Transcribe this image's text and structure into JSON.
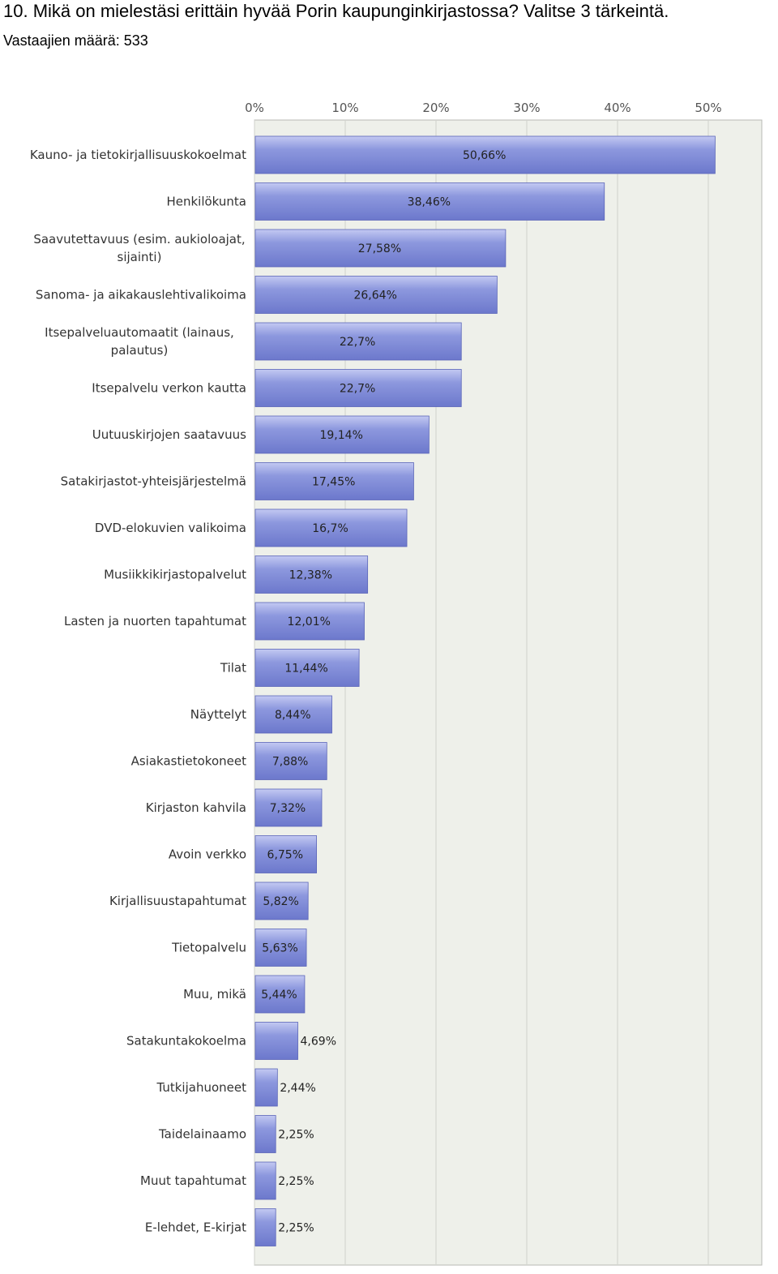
{
  "question": {
    "title": "10. Mikä on mielestäsi erittäin hyvää Porin kaupunginkirjastossa? Valitse 3 tärkeintä.",
    "respondents": "Vastaajien määrä: 533"
  },
  "colors": {
    "bar_fill": "#7f8bd6",
    "bar_highlight": "#b7bff0",
    "bar_edge": "#5a65b8",
    "plot_bg": "#eef0ea",
    "grid": "#d0d2cc"
  },
  "chart_data": {
    "type": "bar",
    "orientation": "horizontal",
    "title": "",
    "xlabel": "",
    "ylabel": "",
    "xlim": [
      0,
      55
    ],
    "x_ticks": [
      {
        "value": 0,
        "label": "0%"
      },
      {
        "value": 10,
        "label": "10%"
      },
      {
        "value": 20,
        "label": "20%"
      },
      {
        "value": 30,
        "label": "30%"
      },
      {
        "value": 40,
        "label": "40%"
      },
      {
        "value": 50,
        "label": "50%"
      }
    ],
    "grid": true,
    "categories": [
      [
        "Kauno- ja tietokirjallisuuskokoelmat"
      ],
      [
        "Henkilökunta"
      ],
      [
        "Saavutettavuus (esim. aukioloajat,",
        "sijainti)"
      ],
      [
        "Sanoma- ja aikakauslehtivalikoima"
      ],
      [
        "Itsepalveluautomaatit (lainaus,",
        "palautus)"
      ],
      [
        "Itsepalvelu verkon kautta"
      ],
      [
        "Uutuuskirjojen saatavuus"
      ],
      [
        "Satakirjastot-yhteisjärjestelmä"
      ],
      [
        "DVD-elokuvien valikoima"
      ],
      [
        "Musiikkikirjastopalvelut"
      ],
      [
        "Lasten ja nuorten tapahtumat"
      ],
      [
        "Tilat"
      ],
      [
        "Näyttelyt"
      ],
      [
        "Asiakastietokoneet"
      ],
      [
        "Kirjaston kahvila"
      ],
      [
        "Avoin verkko"
      ],
      [
        "Kirjallisuustapahtumat"
      ],
      [
        "Tietopalvelu"
      ],
      [
        "Muu, mikä"
      ],
      [
        "Satakuntakokoelma"
      ],
      [
        "Tutkijahuoneet"
      ],
      [
        "Taidelainaamo"
      ],
      [
        "Muut tapahtumat"
      ],
      [
        "E-lehdet, E-kirjat"
      ]
    ],
    "values": [
      50.66,
      38.46,
      27.58,
      26.64,
      22.7,
      22.7,
      19.14,
      17.45,
      16.7,
      12.38,
      12.01,
      11.44,
      8.44,
      7.88,
      7.32,
      6.75,
      5.82,
      5.63,
      5.44,
      4.69,
      2.44,
      2.25,
      2.25,
      2.25
    ],
    "value_labels": [
      "50,66%",
      "38,46%",
      "27,58%",
      "26,64%",
      "22,7%",
      "22,7%",
      "19,14%",
      "17,45%",
      "16,7%",
      "12,38%",
      "12,01%",
      "11,44%",
      "8,44%",
      "7,88%",
      "7,32%",
      "6,75%",
      "5,82%",
      "5,63%",
      "5,44%",
      "4,69%",
      "2,44%",
      "2,25%",
      "2,25%",
      "2,25%"
    ]
  }
}
